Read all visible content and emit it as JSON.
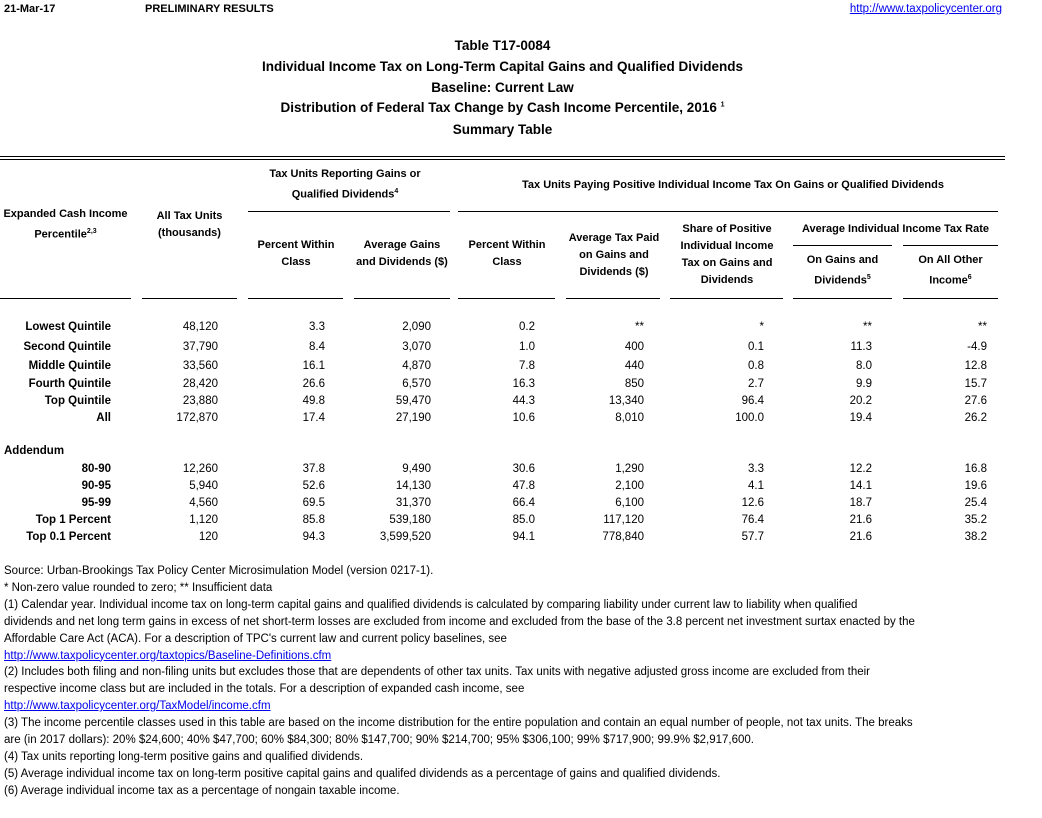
{
  "header": {
    "date": "21-Mar-17",
    "status": "PRELIMINARY RESULTS",
    "url": "http://www.taxpolicycenter.org"
  },
  "titles": [
    "Table T17-0084",
    "Individual Income Tax on Long-Term Capital Gains and Qualified Dividends",
    "Baseline: Current Law",
    "Distribution of Federal Tax Change by Cash Income Percentile, 2016",
    "Summary Table"
  ],
  "title_sup": "1",
  "columns": {
    "percentile": "Expanded Cash Income Percentile",
    "percentile_sup": "2,3",
    "all_units": "All Tax Units (thousands)",
    "group1": "Tax Units Reporting Gains or Qualified Dividends",
    "group1_sup": "4",
    "g1_pct": "Percent Within Class",
    "g1_avg": "Average Gains and Dividends ($)",
    "group2": "Tax Units Paying Positive Individual Income Tax On Gains or Qualified Dividends",
    "g2_pct": "Percent Within Class",
    "g2_avgtax": "Average Tax Paid on Gains and Dividends ($)",
    "g2_share": "Share of Positive Individual Income Tax on Gains and Dividends",
    "rate_group": "Average Individual Income Tax Rate",
    "rate_gains": "On Gains and Dividends",
    "rate_gains_sup": "5",
    "rate_other": "On All Other Income",
    "rate_other_sup": "6"
  },
  "rows": [
    [
      "Lowest Quintile",
      "48,120",
      "3.3",
      "2,090",
      "0.2",
      "**",
      "*",
      "**",
      "**"
    ],
    [
      "Second Quintile",
      "37,790",
      "8.4",
      "3,070",
      "1.0",
      "400",
      "0.1",
      "11.3",
      "-4.9"
    ],
    [
      "Middle Quintile",
      "33,560",
      "16.1",
      "4,870",
      "7.8",
      "440",
      "0.8",
      "8.0",
      "12.8"
    ],
    [
      "Fourth Quintile",
      "28,420",
      "26.6",
      "6,570",
      "16.3",
      "850",
      "2.7",
      "9.9",
      "15.7"
    ],
    [
      "Top Quintile",
      "23,880",
      "49.8",
      "59,470",
      "44.3",
      "13,340",
      "96.4",
      "20.2",
      "27.6"
    ],
    [
      "All",
      "172,870",
      "17.4",
      "27,190",
      "10.6",
      "8,010",
      "100.0",
      "19.4",
      "26.2"
    ]
  ],
  "addendum_label": "Addendum",
  "addendum_rows": [
    [
      "80-90",
      "12,260",
      "37.8",
      "9,490",
      "30.6",
      "1,290",
      "3.3",
      "12.2",
      "16.8"
    ],
    [
      "90-95",
      "5,940",
      "52.6",
      "14,130",
      "47.8",
      "2,100",
      "4.1",
      "14.1",
      "19.6"
    ],
    [
      "95-99",
      "4,560",
      "69.5",
      "31,370",
      "66.4",
      "6,100",
      "12.6",
      "18.7",
      "25.4"
    ],
    [
      "Top 1 Percent",
      "1,120",
      "85.8",
      "539,180",
      "85.0",
      "117,120",
      "76.4",
      "21.6",
      "35.2"
    ],
    [
      "Top 0.1 Percent",
      "120",
      "94.3",
      "3,599,520",
      "94.1",
      "778,840",
      "57.7",
      "21.6",
      "38.2"
    ]
  ],
  "footnotes": [
    {
      "text": "Source: Urban-Brookings Tax Policy Center Microsimulation Model (version 0217-1)."
    },
    {
      "text": "* Non-zero value rounded to zero; ** Insufficient data"
    },
    {
      "text": "(1) Calendar year. Individual income tax on long-term capital gains and qualified dividends is calculated by comparing liability under current law to liability when qualified"
    },
    {
      "text": "dividends and net long term gains in excess of net short-term losses are excluded from income and excluded from the base of the 3.8 percent net investment surtax enacted by the"
    },
    {
      "text": "Affordable Care Act (ACA). For a description of TPC's current law and current policy baselines, see"
    },
    {
      "text": "http://www.taxpolicycenter.org/taxtopics/Baseline-Definitions.cfm",
      "link": true
    },
    {
      "text": "(2) Includes both filing and non-filing units but excludes those that are dependents of other tax units. Tax units with negative adjusted gross income are excluded from their"
    },
    {
      "text": "respective income class but are included in the totals. For a description of expanded cash income, see"
    },
    {
      "text": "http://www.taxpolicycenter.org/TaxModel/income.cfm",
      "link": true
    },
    {
      "text": "(3) The income percentile classes used in this table are based on the income distribution for the entire population and contain an equal number of people, not tax units. The breaks"
    },
    {
      "text": "are (in 2017 dollars): 20% $24,600; 40% $47,700; 60% $84,300; 80% $147,700; 90% $214,700; 95% $306,100; 99% $717,900; 99.9% $2,917,600."
    },
    {
      "text": "(4) Tax units reporting long-term positive gains and qualified dividends."
    },
    {
      "text": "(5) Average individual income tax on long-term positive capital gains and qualifed dividends as a percentage of gains and qualified dividends."
    },
    {
      "text": "(6) Average individual income tax as a percentage of nongain taxable income."
    }
  ]
}
